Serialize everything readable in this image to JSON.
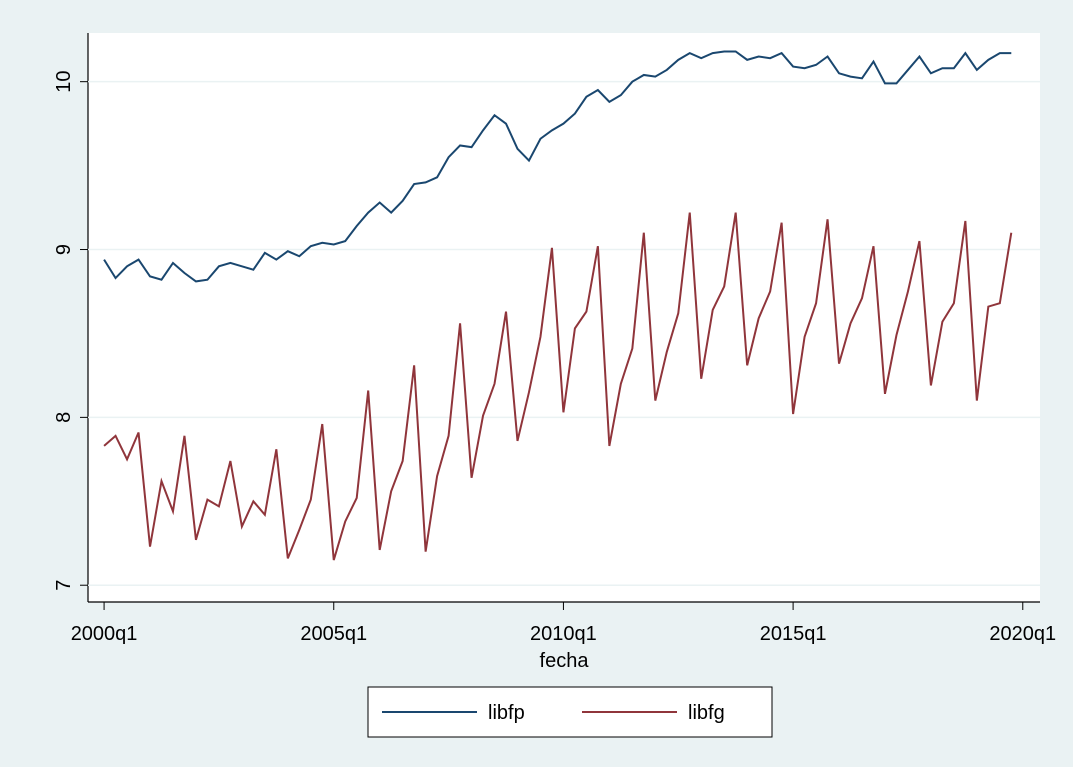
{
  "chart_data": {
    "type": "line",
    "x": [
      160,
      161,
      162,
      163,
      164,
      165,
      166,
      167,
      168,
      169,
      170,
      171,
      172,
      173,
      174,
      175,
      176,
      177,
      178,
      179,
      180,
      181,
      182,
      183,
      184,
      185,
      186,
      187,
      188,
      189,
      190,
      191,
      192,
      193,
      194,
      195,
      196,
      197,
      198,
      199,
      200,
      201,
      202,
      203,
      204,
      205,
      206,
      207,
      208,
      209,
      210,
      211,
      212,
      213,
      214,
      215,
      216,
      217,
      218,
      219,
      220,
      221,
      222,
      223,
      224,
      225,
      226,
      227,
      228,
      229,
      230,
      231,
      232,
      233,
      234,
      235,
      236,
      237,
      238,
      239
    ],
    "series": [
      {
        "name": "libfp",
        "color": "#1a476f",
        "values": [
          8.94,
          8.83,
          8.9,
          8.94,
          8.84,
          8.82,
          8.92,
          8.86,
          8.81,
          8.82,
          8.9,
          8.92,
          8.9,
          8.88,
          8.98,
          8.94,
          8.99,
          8.96,
          9.02,
          9.04,
          9.03,
          9.05,
          9.14,
          9.22,
          9.28,
          9.22,
          9.29,
          9.39,
          9.4,
          9.43,
          9.55,
          9.62,
          9.61,
          9.71,
          9.8,
          9.75,
          9.6,
          9.53,
          9.66,
          9.71,
          9.75,
          9.81,
          9.91,
          9.95,
          9.88,
          9.92,
          10.0,
          10.04,
          10.03,
          10.07,
          10.13,
          10.17,
          10.14,
          10.17,
          10.18,
          10.18,
          10.13,
          10.15,
          10.14,
          10.17,
          10.09,
          10.08,
          10.1,
          10.15,
          10.05,
          10.03,
          10.02,
          10.12,
          9.99,
          9.99,
          10.07,
          10.15,
          10.05,
          10.08,
          10.08,
          10.17,
          10.07,
          10.13,
          10.17,
          10.17
        ]
      },
      {
        "name": "libfg",
        "color": "#90353b",
        "values": [
          7.83,
          7.89,
          7.75,
          7.91,
          7.23,
          7.62,
          7.44,
          7.89,
          7.27,
          7.51,
          7.47,
          7.74,
          7.35,
          7.5,
          7.42,
          7.81,
          7.16,
          7.33,
          7.51,
          7.96,
          7.15,
          7.38,
          7.52,
          8.16,
          7.21,
          7.56,
          7.74,
          8.31,
          7.2,
          7.65,
          7.89,
          8.56,
          7.64,
          8.01,
          8.2,
          8.63,
          7.86,
          8.15,
          8.48,
          9.01,
          8.03,
          8.53,
          8.63,
          9.02,
          7.83,
          8.2,
          8.41,
          9.1,
          8.1,
          8.39,
          8.62,
          9.22,
          8.23,
          8.64,
          8.78,
          9.22,
          8.31,
          8.59,
          8.75,
          9.16,
          8.02,
          8.48,
          8.68,
          9.18,
          8.32,
          8.56,
          8.71,
          9.02,
          8.14,
          8.49,
          8.75,
          9.05,
          8.19,
          8.57,
          8.68,
          9.17,
          8.1,
          8.66,
          8.68,
          9.1
        ]
      }
    ],
    "x_label": "fecha",
    "xlim": [
      158.6,
      241.5
    ],
    "xticks": [
      {
        "value": 160,
        "label": "2000q1"
      },
      {
        "value": 180,
        "label": "2005q1"
      },
      {
        "value": 200,
        "label": "2010q1"
      },
      {
        "value": 220,
        "label": "2015q1"
      },
      {
        "value": 240,
        "label": "2020q1"
      }
    ],
    "ylim": [
      6.9,
      10.29
    ],
    "yticks": [
      7,
      8,
      9,
      10
    ],
    "grid": true,
    "legend": "bottom"
  }
}
